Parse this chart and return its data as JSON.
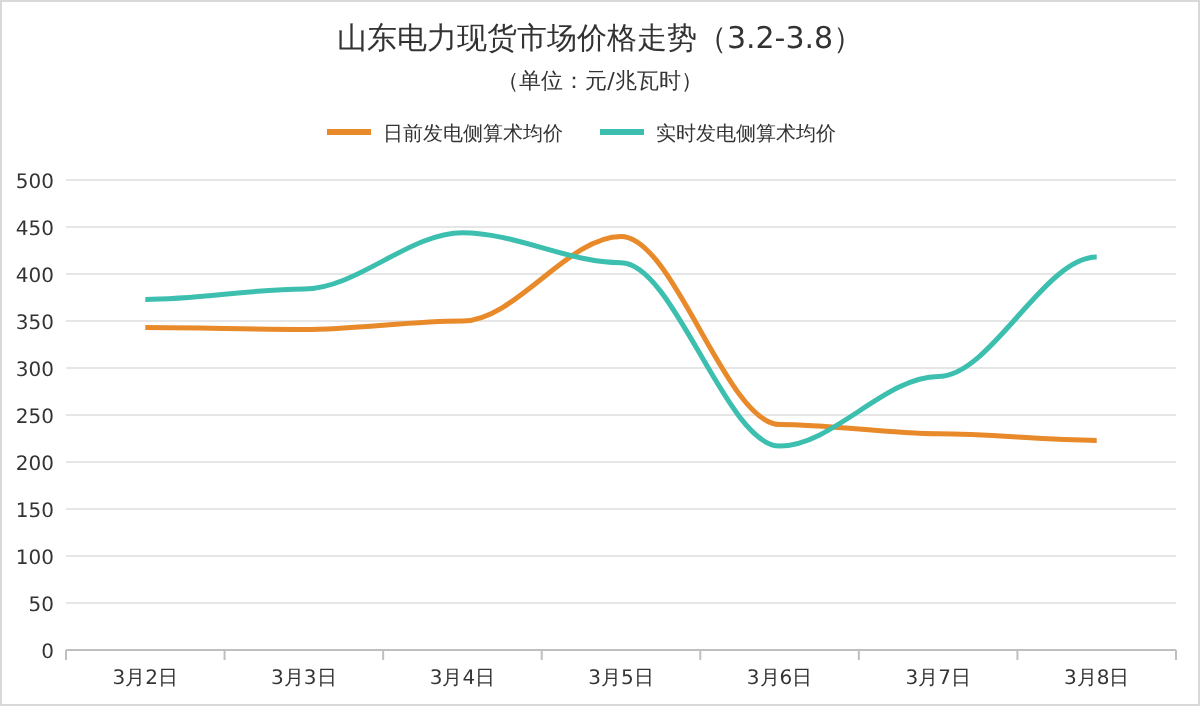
{
  "chart_data": {
    "type": "line",
    "title": "山东电力现货市场价格走势（3.2-3.8）",
    "subtitle": "（单位：元/兆瓦时）",
    "categories": [
      "3月2日",
      "3月3日",
      "3月4日",
      "3月5日",
      "3月6日",
      "3月7日",
      "3月8日"
    ],
    "series": [
      {
        "name": "日前发电侧算术均价",
        "color": "#e8892a",
        "values": [
          343,
          341,
          350,
          440,
          240,
          230,
          223
        ]
      },
      {
        "name": "实时发电侧算术均价",
        "color": "#3cbfae",
        "values": [
          373,
          384,
          444,
          412,
          217,
          291,
          418
        ]
      }
    ],
    "ylim": [
      0,
      500
    ],
    "yticks": [
      0,
      50,
      100,
      150,
      200,
      250,
      300,
      350,
      400,
      450,
      500
    ],
    "grid": "y",
    "legend": "top",
    "marker": "none",
    "line_style": "solid"
  }
}
